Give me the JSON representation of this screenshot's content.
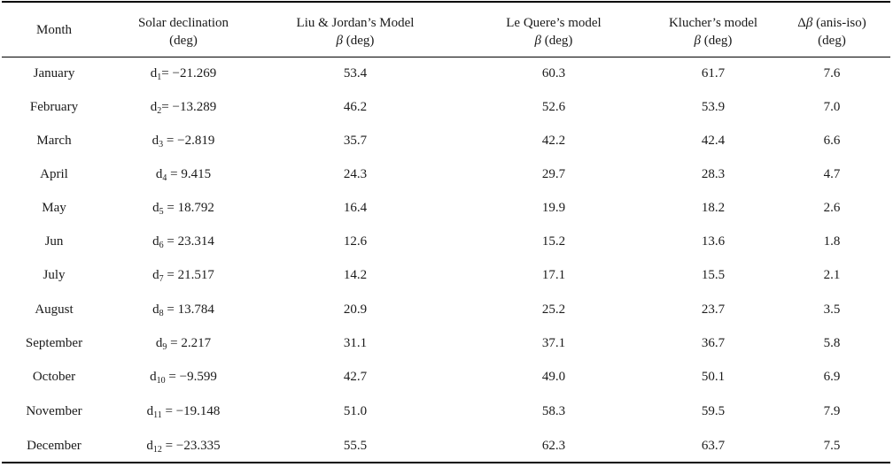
{
  "table": {
    "headers": [
      {
        "line1": "Month",
        "line2": ""
      },
      {
        "line1": "Solar declination",
        "line2": "(deg)"
      },
      {
        "line1": "Liu & Jordan’s Model",
        "line2_sym": "β",
        "line2": " (deg)"
      },
      {
        "line1": "Le Quere’s model",
        "line2_sym": "β",
        "line2": " (deg)"
      },
      {
        "line1": "Klucher’s model",
        "line2_sym": "β",
        "line2": " (deg)"
      },
      {
        "line1_pre": "Δ",
        "line1_sym": "β",
        "line1": " (anis-iso)",
        "line2": "(deg)"
      }
    ],
    "rows": [
      {
        "month": "January",
        "d_label": "d",
        "d_sub": "1",
        "d_eq": "= −21.269",
        "liu": "53.4",
        "lequere": "60.3",
        "klucher": "61.7",
        "delta": "7.6"
      },
      {
        "month": "February",
        "d_label": "d",
        "d_sub": "2",
        "d_eq": "= −13.289",
        "liu": "46.2",
        "lequere": "52.6",
        "klucher": "53.9",
        "delta": "7.0"
      },
      {
        "month": "March",
        "d_label": "d",
        "d_sub": "3",
        "d_eq": " = −2.819",
        "liu": "35.7",
        "lequere": "42.2",
        "klucher": "42.4",
        "delta": "6.6"
      },
      {
        "month": "April",
        "d_label": "d",
        "d_sub": "4",
        "d_eq": " = 9.415",
        "liu": "24.3",
        "lequere": "29.7",
        "klucher": "28.3",
        "delta": "4.7"
      },
      {
        "month": "May",
        "d_label": "d",
        "d_sub": "5",
        "d_eq": " = 18.792",
        "liu": "16.4",
        "lequere": "19.9",
        "klucher": "18.2",
        "delta": "2.6"
      },
      {
        "month": "Jun",
        "d_label": "d",
        "d_sub": "6",
        "d_eq": " = 23.314",
        "liu": "12.6",
        "lequere": "15.2",
        "klucher": "13.6",
        "delta": "1.8"
      },
      {
        "month": "July",
        "d_label": "d",
        "d_sub": "7",
        "d_eq": " = 21.517",
        "liu": "14.2",
        "lequere": "17.1",
        "klucher": "15.5",
        "delta": "2.1"
      },
      {
        "month": "August",
        "d_label": "d",
        "d_sub": "8",
        "d_eq": " = 13.784",
        "liu": "20.9",
        "lequere": "25.2",
        "klucher": "23.7",
        "delta": "3.5"
      },
      {
        "month": "September",
        "d_label": "d",
        "d_sub": "9",
        "d_eq": " = 2.217",
        "liu": "31.1",
        "lequere": "37.1",
        "klucher": "36.7",
        "delta": "5.8"
      },
      {
        "month": "October",
        "d_label": "d",
        "d_sub": "10",
        "d_eq": " = −9.599",
        "liu": "42.7",
        "lequere": "49.0",
        "klucher": "50.1",
        "delta": "6.9"
      },
      {
        "month": "November",
        "d_label": "d",
        "d_sub": "11",
        "d_eq": " = −19.148",
        "liu": "51.0",
        "lequere": "58.3",
        "klucher": "59.5",
        "delta": "7.9"
      },
      {
        "month": "December",
        "d_label": "d",
        "d_sub": "12",
        "d_eq": " = −23.335",
        "liu": "55.5",
        "lequere": "62.3",
        "klucher": "63.7",
        "delta": "7.5"
      }
    ]
  }
}
